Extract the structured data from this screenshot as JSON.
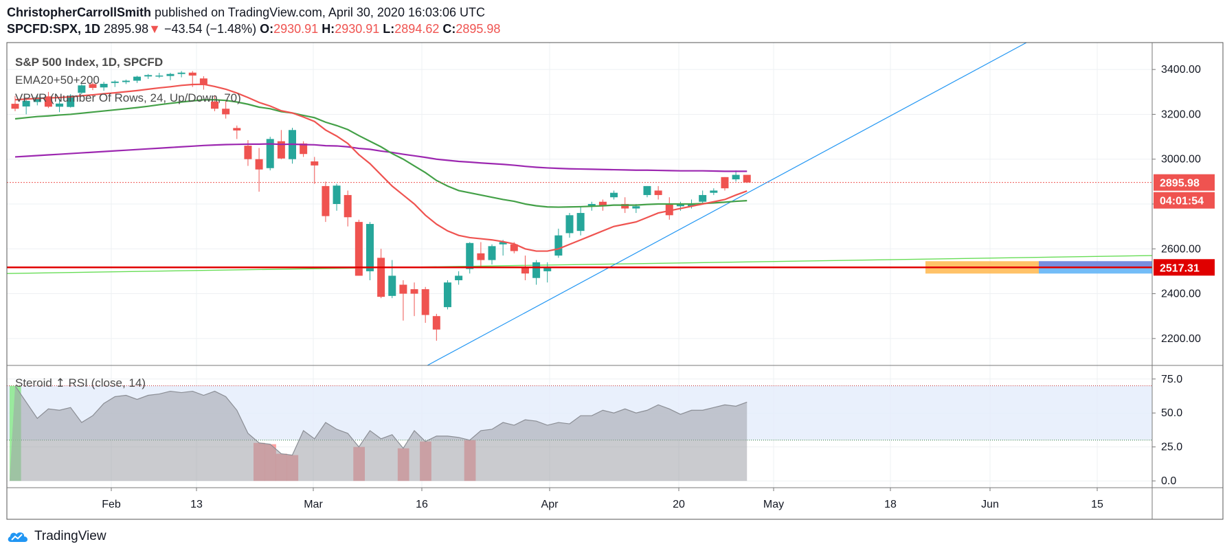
{
  "header": {
    "author": "ChristopherCarrollSmith",
    "published": "published on TradingView.com, April 30, 2020 16:03:06 UTC",
    "symbol": "SPCFD:SPX, 1D",
    "last": "2895.98",
    "change": "−43.54 (−1.48%)",
    "o_label": "O:",
    "o_val": "2930.91",
    "h_label": "H:",
    "h_val": "2930.91",
    "l_label": "L:",
    "l_val": "2894.62",
    "c_label": "C:",
    "c_val": "2895.98"
  },
  "footer": {
    "brand": "TradingView"
  },
  "colors": {
    "up": "#26a69a",
    "down": "#ef5350",
    "ema20": "#ef5350",
    "ema50": "#43a047",
    "ema200": "#9c27b0",
    "trend": "#2196f3",
    "support": "#e00000",
    "rsi_fill": "#b2b5be"
  },
  "chart_data": [
    {
      "type": "candlestick",
      "title": "S&P 500 Index, 1D, SPCFD",
      "indicators": [
        "EMA20+50+200",
        "VPVR (Number Of Rows, 24, Up/Down, 70)"
      ],
      "ylim": [
        2080,
        3520
      ],
      "y_ticks": [
        "3400.00",
        "3200.00",
        "3000.00",
        "2800.00",
        "2600.00",
        "2400.00",
        "2200.00"
      ],
      "x_ticks": [
        "Feb",
        "13",
        "Mar",
        "16",
        "Apr",
        "20",
        "May",
        "18",
        "Jun",
        "15"
      ],
      "last_price_label": "2895.98",
      "countdown_label": "04:01:54",
      "support_level": 2517.31,
      "support_label": "2517.31",
      "ohlc": [
        [
          3247,
          3282,
          3214,
          3225
        ],
        [
          3235,
          3268,
          3200,
          3260
        ],
        [
          3255,
          3285,
          3240,
          3276
        ],
        [
          3280,
          3300,
          3228,
          3234
        ],
        [
          3234,
          3270,
          3210,
          3248
        ],
        [
          3233,
          3290,
          3230,
          3283
        ],
        [
          3296,
          3335,
          3290,
          3329
        ],
        [
          3335,
          3342,
          3308,
          3318
        ],
        [
          3320,
          3345,
          3305,
          3336
        ],
        [
          3340,
          3352,
          3322,
          3346
        ],
        [
          3344,
          3355,
          3335,
          3350
        ],
        [
          3350,
          3372,
          3340,
          3368
        ],
        [
          3369,
          3380,
          3358,
          3375
        ],
        [
          3373,
          3385,
          3362,
          3373
        ],
        [
          3371,
          3385,
          3352,
          3380
        ],
        [
          3380,
          3393,
          3365,
          3386
        ],
        [
          3386,
          3393,
          3322,
          3373
        ],
        [
          3360,
          3370,
          3310,
          3330
        ],
        [
          3257,
          3285,
          3214,
          3225
        ],
        [
          3225,
          3260,
          3181,
          3200
        ],
        [
          3139,
          3150,
          3090,
          3128
        ],
        [
          3060,
          3085,
          2970,
          3000
        ],
        [
          3000,
          3050,
          2855,
          2954
        ],
        [
          2960,
          3100,
          2950,
          3090
        ],
        [
          3080,
          3130,
          3000,
          3003
        ],
        [
          3000,
          3140,
          2980,
          3130
        ],
        [
          3070,
          3080,
          3010,
          3023
        ],
        [
          2990,
          3010,
          2890,
          2972
        ],
        [
          2880,
          2900,
          2720,
          2746
        ],
        [
          2800,
          2890,
          2770,
          2882
        ],
        [
          2840,
          2860,
          2700,
          2741
        ],
        [
          2720,
          2730,
          2480,
          2480
        ],
        [
          2500,
          2720,
          2460,
          2711
        ],
        [
          2560,
          2600,
          2380,
          2386
        ],
        [
          2390,
          2550,
          2380,
          2480
        ],
        [
          2440,
          2460,
          2280,
          2400
        ],
        [
          2420,
          2450,
          2300,
          2400
        ],
        [
          2420,
          2430,
          2270,
          2305
        ],
        [
          2300,
          2310,
          2190,
          2240
        ],
        [
          2340,
          2460,
          2330,
          2450
        ],
        [
          2460,
          2500,
          2440,
          2480
        ],
        [
          2510,
          2630,
          2490,
          2626
        ],
        [
          2580,
          2630,
          2520,
          2550
        ],
        [
          2550,
          2620,
          2530,
          2612
        ],
        [
          2620,
          2640,
          2570,
          2630
        ],
        [
          2620,
          2630,
          2580,
          2590
        ],
        [
          2520,
          2570,
          2460,
          2490
        ],
        [
          2470,
          2550,
          2440,
          2540
        ],
        [
          2500,
          2540,
          2450,
          2520
        ],
        [
          2570,
          2690,
          2560,
          2660
        ],
        [
          2670,
          2760,
          2650,
          2750
        ],
        [
          2680,
          2790,
          2660,
          2760
        ],
        [
          2790,
          2810,
          2770,
          2800
        ],
        [
          2810,
          2820,
          2770,
          2790
        ],
        [
          2830,
          2860,
          2820,
          2850
        ],
        [
          2800,
          2830,
          2760,
          2780
        ],
        [
          2780,
          2800,
          2760,
          2790
        ],
        [
          2840,
          2880,
          2830,
          2880
        ],
        [
          2860,
          2880,
          2820,
          2840
        ],
        [
          2800,
          2830,
          2730,
          2750
        ],
        [
          2790,
          2810,
          2770,
          2800
        ],
        [
          2790,
          2820,
          2780,
          2800
        ],
        [
          2810,
          2860,
          2800,
          2840
        ],
        [
          2850,
          2870,
          2840,
          2860
        ],
        [
          2920,
          2920,
          2860,
          2870
        ],
        [
          2910,
          2950,
          2900,
          2930
        ],
        [
          2930,
          2930,
          2894,
          2896
        ]
      ],
      "ema20": [
        3265,
        3268,
        3271,
        3273,
        3275,
        3278,
        3283,
        3287,
        3292,
        3296,
        3301,
        3306,
        3312,
        3318,
        3323,
        3329,
        3333,
        3334,
        3324,
        3312,
        3295,
        3275,
        3253,
        3237,
        3216,
        3206,
        3188,
        3168,
        3130,
        3103,
        3070,
        3020,
        2980,
        2930,
        2880,
        2840,
        2800,
        2750,
        2710,
        2680,
        2660,
        2650,
        2645,
        2640,
        2632,
        2622,
        2600,
        2590,
        2590,
        2600,
        2620,
        2640,
        2660,
        2680,
        2700,
        2710,
        2720,
        2740,
        2760,
        2770,
        2780,
        2790,
        2800,
        2810,
        2820,
        2840,
        2858
      ],
      "ema50": [
        3180,
        3185,
        3190,
        3193,
        3197,
        3200,
        3205,
        3210,
        3215,
        3220,
        3225,
        3230,
        3236,
        3243,
        3249,
        3255,
        3260,
        3265,
        3265,
        3262,
        3255,
        3245,
        3232,
        3225,
        3212,
        3206,
        3195,
        3185,
        3165,
        3150,
        3132,
        3105,
        3080,
        3055,
        3025,
        3000,
        2970,
        2940,
        2905,
        2880,
        2860,
        2850,
        2840,
        2830,
        2820,
        2812,
        2800,
        2792,
        2787,
        2786,
        2787,
        2788,
        2790,
        2792,
        2795,
        2795,
        2795,
        2798,
        2800,
        2800,
        2800,
        2800,
        2802,
        2805,
        2808,
        2812,
        2815
      ],
      "ema200": [
        3010,
        3013,
        3016,
        3019,
        3022,
        3025,
        3028,
        3031,
        3034,
        3037,
        3040,
        3043,
        3046,
        3049,
        3052,
        3055,
        3058,
        3061,
        3063,
        3065,
        3066,
        3067,
        3067,
        3068,
        3066,
        3067,
        3065,
        3064,
        3060,
        3059,
        3055,
        3048,
        3044,
        3036,
        3030,
        3022,
        3015,
        3008,
        3000,
        2995,
        2990,
        2987,
        2983,
        2980,
        2977,
        2973,
        2968,
        2964,
        2961,
        2959,
        2957,
        2956,
        2955,
        2954,
        2953,
        2952,
        2951,
        2951,
        2950,
        2949,
        2948,
        2948,
        2948,
        2947,
        2946,
        2946,
        2946
      ]
    },
    {
      "type": "area",
      "title": "Steroid ↥ RSI (close, 14)",
      "ylim": [
        -5,
        85
      ],
      "y_ticks": [
        "75.0",
        "50.0",
        "25.0",
        "0.0"
      ],
      "overbought": 70,
      "oversold": 30,
      "values": [
        70,
        58,
        46,
        53,
        52,
        54,
        43,
        48,
        57,
        62,
        63,
        60,
        63,
        64,
        66,
        65,
        66,
        63,
        66,
        62,
        52,
        35,
        28,
        27,
        20,
        19,
        37,
        31,
        43,
        38,
        35,
        25,
        37,
        31,
        34,
        24,
        37,
        29,
        33,
        33,
        32,
        30,
        37,
        38,
        43,
        41,
        45,
        44,
        41,
        43,
        42,
        48,
        48,
        52,
        50,
        53,
        50,
        52,
        56,
        53,
        49,
        52,
        52,
        54,
        56,
        55,
        58
      ]
    }
  ]
}
